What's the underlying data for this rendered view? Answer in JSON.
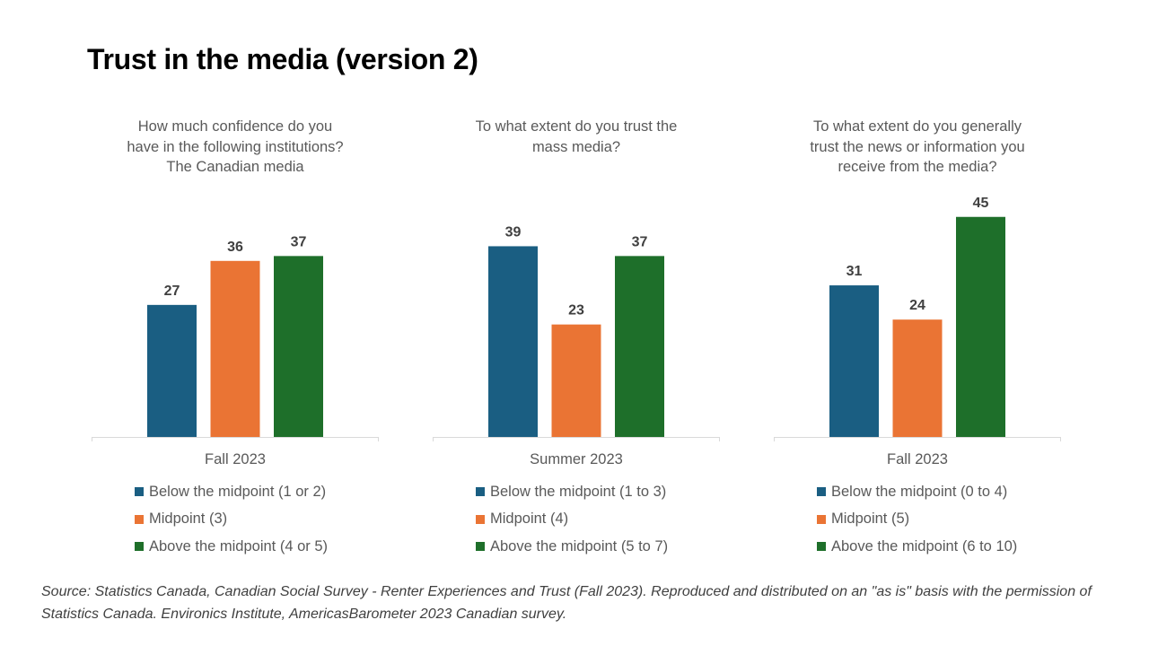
{
  "page": {
    "title": "Trust in the media (version 2)",
    "source": "Source: Statistics Canada, Canadian Social Survey - Renter Experiences and Trust (Fall 2023). Reproduced and distributed on an \"as is\" basis with the permission of Statistics Canada. Environics Institute, AmericasBarometer 2023 Canadian survey."
  },
  "colors": {
    "below": "#1a5e82",
    "midpoint": "#ea7434",
    "above": "#1e6f2a"
  },
  "chart_data": [
    {
      "type": "bar",
      "title_lines": [
        "How much confidence do you",
        "have in the following institutions?",
        "The Canadian media"
      ],
      "categories": [
        "Fall 2023"
      ],
      "series": [
        {
          "name": "Below the midpoint (1 or 2)",
          "color": "#1a5e82",
          "values": [
            27
          ]
        },
        {
          "name": "Midpoint (3)",
          "color": "#ea7434",
          "values": [
            36
          ]
        },
        {
          "name": "Above the midpoint (4 or 5)",
          "color": "#1e6f2a",
          "values": [
            37
          ]
        }
      ],
      "ylim": [
        0,
        45
      ],
      "grid": false,
      "legend_position": "bottom"
    },
    {
      "type": "bar",
      "title_lines": [
        "To what extent do you trust the",
        "mass media?"
      ],
      "categories": [
        "Summer 2023"
      ],
      "series": [
        {
          "name": "Below the midpoint (1 to 3)",
          "color": "#1a5e82",
          "values": [
            39
          ]
        },
        {
          "name": "Midpoint (4)",
          "color": "#ea7434",
          "values": [
            23
          ]
        },
        {
          "name": "Above the midpoint (5 to 7)",
          "color": "#1e6f2a",
          "values": [
            37
          ]
        }
      ],
      "ylim": [
        0,
        45
      ],
      "grid": false,
      "legend_position": "bottom"
    },
    {
      "type": "bar",
      "title_lines": [
        "To what extent do you generally",
        "trust the news or information you",
        "receive from the media?"
      ],
      "categories": [
        "Fall 2023"
      ],
      "series": [
        {
          "name": "Below the midpoint (0 to 4)",
          "color": "#1a5e82",
          "values": [
            31
          ]
        },
        {
          "name": "Midpoint (5)",
          "color": "#ea7434",
          "values": [
            24
          ]
        },
        {
          "name": "Above the midpoint (6 to 10)",
          "color": "#1e6f2a",
          "values": [
            45
          ]
        }
      ],
      "ylim": [
        0,
        45
      ],
      "grid": false,
      "legend_position": "bottom"
    }
  ]
}
